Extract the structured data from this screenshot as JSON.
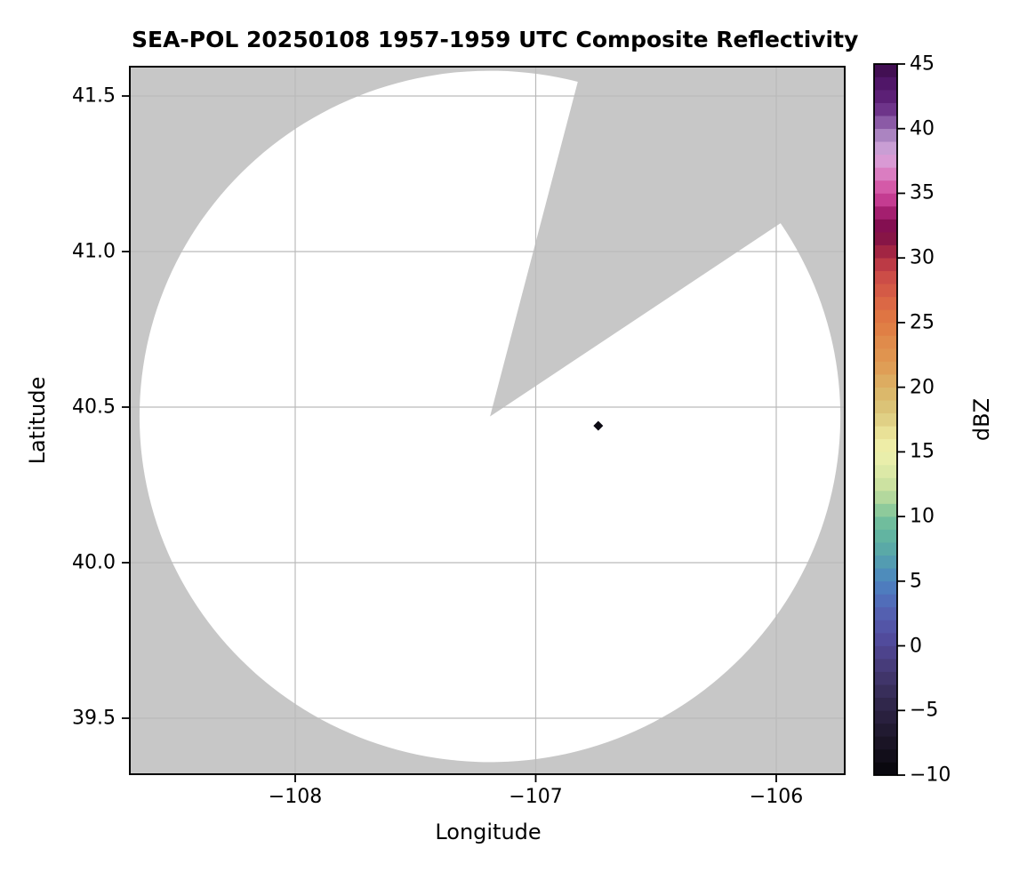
{
  "chart_data": {
    "type": "heatmap",
    "subtype": "radar-composite-reflectivity-map",
    "title": "SEA-POL 20250108 1957-1959 UTC Composite Reflectivity",
    "xlabel": "Longitude",
    "ylabel": "Latitude",
    "x_range": [
      -108.69,
      -105.72
    ],
    "y_range": [
      39.32,
      41.59
    ],
    "x_tick_values": [
      -108,
      -107,
      -106
    ],
    "x_tick_labels": [
      "−108",
      "−107",
      "−106"
    ],
    "y_tick_values": [
      41.5,
      41.0,
      40.5,
      40.0,
      39.5
    ],
    "y_tick_labels": [
      "41.5",
      "41.0",
      "40.5",
      "40.0",
      "39.5"
    ],
    "grid": true,
    "colors": {
      "masked_background": "#c7c7c7",
      "coverage_no_echo": "#ffffff",
      "gridline": "#bababa",
      "axis": "#000000"
    },
    "radar_coverage": {
      "description": "white disk = scanned area with no echo; gray = outside scan / masked sector",
      "center_lon": -107.19,
      "center_lat": 40.47,
      "radius_lon_deg": 1.457,
      "radius_lat_deg": 1.111,
      "masked_sector_azimuth_deg": [
        14.5,
        56
      ]
    },
    "echoes": [
      {
        "lon": -106.74,
        "lat": 40.44,
        "approx_dbz": -8,
        "color": "#0d0b14",
        "shape": "small diamond pixel cluster"
      }
    ],
    "colorbar": {
      "label": "dBZ",
      "min": -10,
      "max": 45,
      "tick_values": [
        45,
        40,
        35,
        30,
        25,
        20,
        15,
        10,
        5,
        0,
        -5,
        -10
      ],
      "tick_labels": [
        "45",
        "40",
        "35",
        "30",
        "25",
        "20",
        "15",
        "10",
        "5",
        "0",
        "−5",
        "−10"
      ],
      "segment_dbz": 1,
      "colormap_anchors": [
        [
          -10,
          "#060409"
        ],
        [
          -9,
          "#0e0b14"
        ],
        [
          -8,
          "#16111f"
        ],
        [
          -7,
          "#1d172a"
        ],
        [
          -6,
          "#251d37"
        ],
        [
          -5,
          "#2c2344"
        ],
        [
          -4,
          "#342a52"
        ],
        [
          -3,
          "#3c3162"
        ],
        [
          -2,
          "#433871"
        ],
        [
          -1,
          "#4a3f82"
        ],
        [
          0,
          "#504696"
        ],
        [
          1,
          "#5250a2"
        ],
        [
          2,
          "#5459ab"
        ],
        [
          3,
          "#5366b5"
        ],
        [
          4,
          "#4f74bc"
        ],
        [
          5,
          "#4d83c0"
        ],
        [
          6,
          "#4f94b6"
        ],
        [
          7,
          "#57a3ab"
        ],
        [
          8,
          "#5dafa3"
        ],
        [
          9,
          "#67b89e"
        ],
        [
          10,
          "#79c19b"
        ],
        [
          11,
          "#a3d29b"
        ],
        [
          12,
          "#c2de9e"
        ],
        [
          13,
          "#d5e5a4"
        ],
        [
          14,
          "#e3ecaa"
        ],
        [
          15,
          "#eef0ab"
        ],
        [
          16,
          "#eeeaa2"
        ],
        [
          17,
          "#e3d78c"
        ],
        [
          18,
          "#dcc97e"
        ],
        [
          19,
          "#d9bc70"
        ],
        [
          20,
          "#dcb366"
        ],
        [
          21,
          "#dda55c"
        ],
        [
          22,
          "#e0974f"
        ],
        [
          23,
          "#e0914e"
        ],
        [
          24,
          "#e08448"
        ],
        [
          25,
          "#e07a42"
        ],
        [
          26,
          "#dd6f44"
        ],
        [
          27,
          "#d86045"
        ],
        [
          28,
          "#d05447"
        ],
        [
          29,
          "#c84546"
        ],
        [
          30,
          "#b02f44"
        ],
        [
          31,
          "#931b42"
        ],
        [
          32,
          "#7a0e49"
        ],
        [
          33,
          "#8e1059"
        ],
        [
          34,
          "#b92d85"
        ],
        [
          35,
          "#cf4a9c"
        ],
        [
          36,
          "#d86ab4"
        ],
        [
          37,
          "#dc8fcd"
        ],
        [
          38,
          "#d6a5da"
        ],
        [
          39,
          "#bc97cd"
        ],
        [
          40,
          "#9a71b5"
        ],
        [
          41,
          "#7b4297"
        ],
        [
          42,
          "#61267c"
        ],
        [
          43,
          "#56196f"
        ],
        [
          44,
          "#4a1260"
        ],
        [
          45,
          "#3a0c46"
        ]
      ]
    }
  }
}
